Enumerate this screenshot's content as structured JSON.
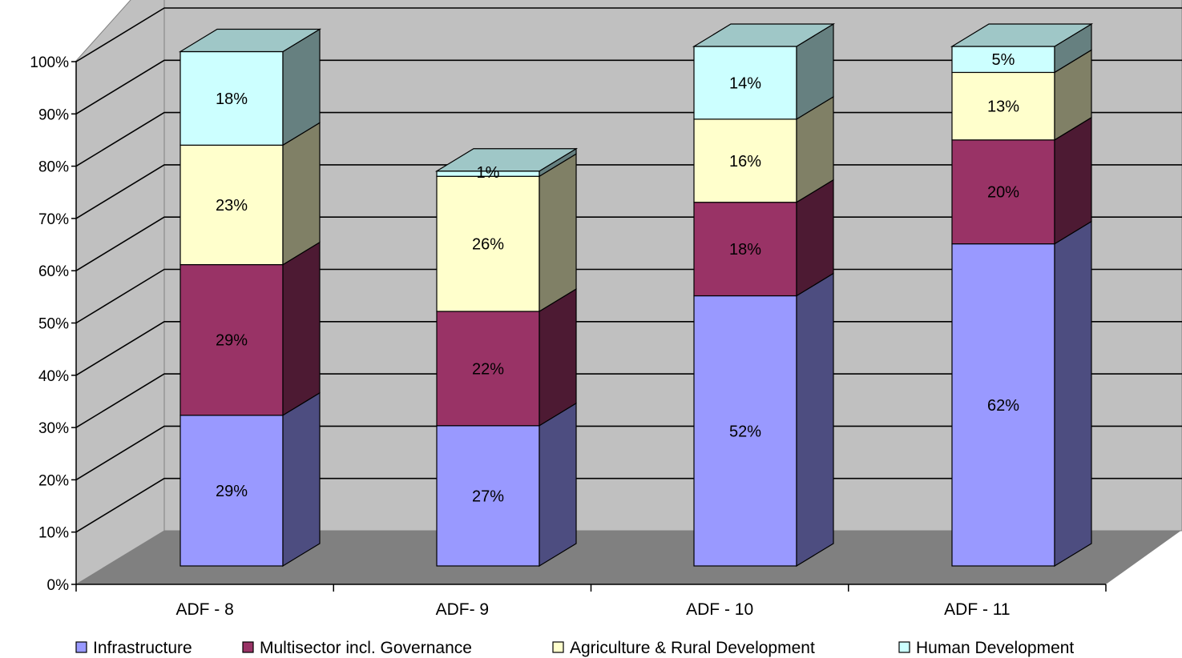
{
  "chart_data": {
    "type": "bar",
    "stacked": true,
    "percent_stacked": true,
    "three_d": true,
    "categories": [
      "ADF - 8",
      "ADF- 9",
      "ADF - 10",
      "ADF - 11"
    ],
    "series": [
      {
        "name": "Infrastructure",
        "values": [
          29,
          27,
          52,
          62
        ],
        "labels": [
          "29%",
          "27%",
          "52%",
          "62%"
        ],
        "color": "#9999ff"
      },
      {
        "name": "Multisector incl. Governance",
        "values": [
          29,
          22,
          18,
          20
        ],
        "labels": [
          "29%",
          "22%",
          "18%",
          "20%"
        ],
        "color": "#993366"
      },
      {
        "name": "Agriculture & Rural Development",
        "values": [
          23,
          26,
          16,
          13
        ],
        "labels": [
          "23%",
          "26%",
          "16%",
          "13%"
        ],
        "color": "#ffffcc"
      },
      {
        "name": "Human Development",
        "values": [
          18,
          1,
          14,
          5
        ],
        "labels": [
          "18%",
          "1%",
          "14%",
          "5%"
        ],
        "color": "#ccffff"
      }
    ],
    "y_ticks": [
      "0%",
      "10%",
      "20%",
      "30%",
      "40%",
      "50%",
      "60%",
      "70%",
      "80%",
      "90%",
      "100%"
    ],
    "ylim": [
      0,
      100
    ],
    "grid": true,
    "legend_position": "bottom",
    "wall_color": "#c0c0c0",
    "floor_color": "#808080"
  }
}
